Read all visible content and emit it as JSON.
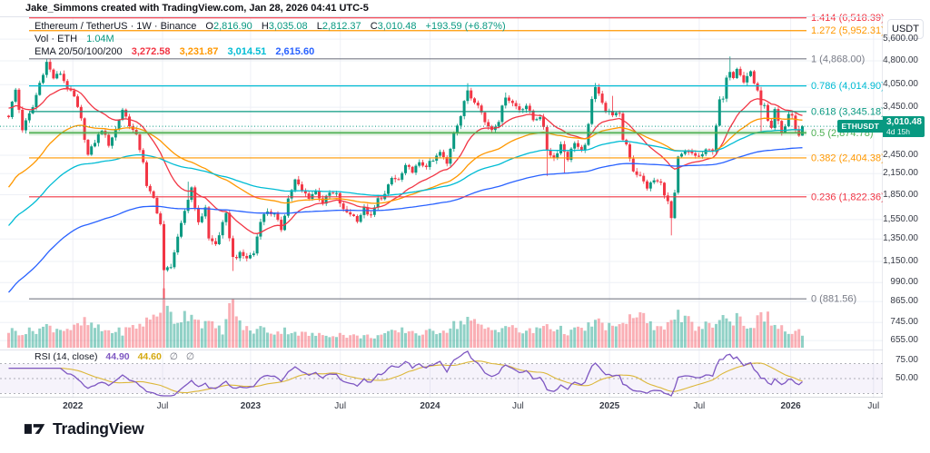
{
  "header": {
    "attribution": "Jake_Simmons created with TradingView.com, Jan 28, 2026 04:41 UTC-5"
  },
  "legend": {
    "symbol_line": {
      "title": "Ethereum / TetherUS · 1W · Binance",
      "o_label": "O",
      "o": "2,816.90",
      "h_label": "H",
      "h": "3,035.08",
      "l_label": "L",
      "l": "2,812.37",
      "c_label": "C",
      "c": "3,010.48",
      "change": "+193.59 (+6.87%)"
    },
    "volume_line": {
      "title": "Vol · ETH",
      "value": "1.04M"
    },
    "ema_line": {
      "title": "EMA 20/50/100/200",
      "values": [
        {
          "text": "3,272.58",
          "color": "#f23645"
        },
        {
          "text": "3,231.87",
          "color": "#ff9800"
        },
        {
          "text": "3,014.51",
          "color": "#00bcd4"
        },
        {
          "text": "2,615.60",
          "color": "#2962ff"
        }
      ]
    }
  },
  "price_scale": {
    "currency": "USDT",
    "labels": [
      "5,600.00",
      "4,800.00",
      "4,050.00",
      "3,450.00",
      "2,450.00",
      "2,150.00",
      "1,850.00",
      "1,550.00",
      "1,350.00",
      "1,150.00",
      "990.00",
      "865.00",
      "745.00",
      "655.00"
    ],
    "hidden_grid_levels": [
      2950
    ],
    "symbol_badge": "ETHUSDT",
    "last_price": "3,010.48",
    "countdown": "4d 15h"
  },
  "rsi_scale": {
    "labels": [
      {
        "label": "75.00",
        "value": 75
      },
      {
        "label": "50.00",
        "value": 50
      }
    ]
  },
  "time_axis": {
    "ticks": [
      {
        "label": "2022",
        "week": 19,
        "major": true
      },
      {
        "label": "Jul",
        "week": 45,
        "major": false
      },
      {
        "label": "2023",
        "week": 70.5,
        "major": true
      },
      {
        "label": "Jul",
        "week": 96.5,
        "major": false
      },
      {
        "label": "2024",
        "week": 122.5,
        "major": true
      },
      {
        "label": "Jul",
        "week": 148,
        "major": false
      },
      {
        "label": "2025",
        "week": 174.5,
        "major": true
      },
      {
        "label": "Jul",
        "week": 200.5,
        "major": false
      },
      {
        "label": "2026",
        "week": 227,
        "major": true
      },
      {
        "label": "Jul",
        "week": 251,
        "major": false
      }
    ]
  },
  "fib_levels": [
    {
      "label": "1.414 (6,518.39)",
      "value": 1.414,
      "price": 6518.39,
      "color": "#f23645",
      "band": false
    },
    {
      "label": "1.272 (5,952.31)",
      "value": 1.272,
      "price": 5952.31,
      "color": "#ff9800",
      "band": false
    },
    {
      "label": "1 (4,868.00)",
      "value": 1,
      "price": 4868.0,
      "color": "#787b86",
      "band": false
    },
    {
      "label": "0.786 (4,014.90)",
      "value": 0.786,
      "price": 4014.9,
      "color": "#00bcd4",
      "band": false
    },
    {
      "label": "0.618 (3,345.18)",
      "value": 0.618,
      "price": 3345.18,
      "color": "#089981",
      "band": false
    },
    {
      "label": "0.5 (2,874.78)",
      "value": 0.5,
      "price": 2874.78,
      "color": "#4caf50",
      "band": true
    },
    {
      "label": "0.382 (2,404.38)",
      "value": 0.382,
      "price": 2404.38,
      "color": "#ff9800",
      "band": false
    },
    {
      "label": "0.236 (1,822.36)",
      "value": 0.236,
      "price": 1822.36,
      "color": "#f23645",
      "band": false
    },
    {
      "label": "0 (881.56)",
      "value": 0,
      "price": 881.56,
      "color": "#787b86",
      "band": false
    }
  ],
  "rsi_legend": {
    "title": "RSI (14, close)",
    "value_main": "44.90",
    "value_main_color": "#7e57c2",
    "value_ma": "44.60",
    "value_ma_color": "#d4a90f",
    "empty1": "∅",
    "empty2": "∅",
    "empty_color": "#787b86"
  },
  "footer": {
    "brand": "TradingView"
  },
  "chart_data": {
    "type": "candlestick",
    "symbol": "ETHUSDT",
    "exchange": "Binance",
    "timeframe": "1W",
    "scale": "log",
    "ylim": [
      620,
      5900
    ],
    "weeks": 231,
    "current_bar": {
      "open": 2816.9,
      "high": 3035.08,
      "low": 2812.37,
      "close": 3010.48,
      "change": 193.59,
      "change_pct": 6.87
    },
    "colors": {
      "up": "#089981",
      "down": "#f23645",
      "grid": "#eef0f6",
      "current_line": "#089981",
      "vol_up": "rgba(8,153,129,0.45)",
      "vol_down": "rgba(242,54,69,0.40)",
      "rsi_line": "#7e57c2",
      "rsi_ma": "#dcb73a",
      "rsi_band_fill": "rgba(126,87,194,0.07)",
      "rsi_band_line": "#9598a1"
    },
    "price_path_anchors": [
      [
        0,
        3250
      ],
      [
        2,
        3900
      ],
      [
        4,
        2950
      ],
      [
        7,
        3450
      ],
      [
        9,
        4100
      ],
      [
        11,
        4750
      ],
      [
        13,
        4250
      ],
      [
        15,
        4400
      ],
      [
        17,
        3950
      ],
      [
        19,
        3700
      ],
      [
        21,
        3150
      ],
      [
        23,
        2450
      ],
      [
        25,
        2700
      ],
      [
        27,
        2950
      ],
      [
        29,
        2650
      ],
      [
        31,
        2950
      ],
      [
        33,
        3400
      ],
      [
        35,
        3050
      ],
      [
        37,
        2800
      ],
      [
        39,
        2350
      ],
      [
        40,
        1950
      ],
      [
        42,
        1800
      ],
      [
        44,
        1500
      ],
      [
        45,
        1070
      ],
      [
        47,
        1120
      ],
      [
        49,
        1350
      ],
      [
        51,
        1650
      ],
      [
        53,
        1950
      ],
      [
        55,
        1500
      ],
      [
        57,
        1700
      ],
      [
        58,
        1350
      ],
      [
        60,
        1300
      ],
      [
        62,
        1500
      ],
      [
        63,
        1600
      ],
      [
        65,
        1180
      ],
      [
        67,
        1210
      ],
      [
        69,
        1180
      ],
      [
        71,
        1220
      ],
      [
        73,
        1550
      ],
      [
        75,
        1650
      ],
      [
        77,
        1600
      ],
      [
        79,
        1450
      ],
      [
        81,
        1800
      ],
      [
        83,
        2050
      ],
      [
        85,
        1900
      ],
      [
        87,
        1820
      ],
      [
        89,
        1900
      ],
      [
        91,
        1750
      ],
      [
        93,
        1870
      ],
      [
        95,
        1850
      ],
      [
        97,
        1650
      ],
      [
        99,
        1620
      ],
      [
        101,
        1550
      ],
      [
        103,
        1670
      ],
      [
        105,
        1580
      ],
      [
        107,
        1790
      ],
      [
        109,
        1850
      ],
      [
        111,
        2080
      ],
      [
        113,
        2050
      ],
      [
        115,
        2250
      ],
      [
        117,
        2200
      ],
      [
        119,
        2300
      ],
      [
        121,
        2280
      ],
      [
        123,
        2350
      ],
      [
        125,
        2500
      ],
      [
        127,
        2300
      ],
      [
        129,
        2900
      ],
      [
        131,
        3250
      ],
      [
        133,
        3900
      ],
      [
        134,
        3700
      ],
      [
        136,
        3550
      ],
      [
        138,
        3100
      ],
      [
        140,
        2950
      ],
      [
        142,
        3150
      ],
      [
        144,
        3750
      ],
      [
        146,
        3550
      ],
      [
        148,
        3400
      ],
      [
        150,
        3500
      ],
      [
        152,
        3150
      ],
      [
        154,
        3250
      ],
      [
        155,
        2950
      ],
      [
        156,
        2550
      ],
      [
        158,
        2400
      ],
      [
        160,
        2650
      ],
      [
        162,
        2400
      ],
      [
        164,
        2700
      ],
      [
        166,
        2500
      ],
      [
        167,
        2600
      ],
      [
        168,
        3100
      ],
      [
        169,
        3600
      ],
      [
        170,
        3950
      ],
      [
        171,
        3850
      ],
      [
        172,
        3600
      ],
      [
        173,
        3350
      ],
      [
        175,
        3300
      ],
      [
        177,
        3250
      ],
      [
        178,
        2750
      ],
      [
        179,
        2650
      ],
      [
        181,
        2200
      ],
      [
        183,
        2100
      ],
      [
        185,
        1950
      ],
      [
        187,
        2050
      ],
      [
        189,
        2000
      ],
      [
        191,
        1750
      ],
      [
        192,
        1560
      ],
      [
        193,
        1850
      ],
      [
        194,
        2400
      ],
      [
        196,
        2500
      ],
      [
        198,
        2480
      ],
      [
        200,
        2420
      ],
      [
        202,
        2520
      ],
      [
        204,
        2550
      ],
      [
        205,
        3050
      ],
      [
        206,
        3600
      ],
      [
        207,
        3650
      ],
      [
        208,
        4200
      ],
      [
        209,
        4500
      ],
      [
        210,
        4300
      ],
      [
        211,
        4600
      ],
      [
        212,
        4400
      ],
      [
        213,
        4150
      ],
      [
        214,
        4300
      ],
      [
        215,
        4450
      ],
      [
        216,
        4100
      ],
      [
        217,
        3900
      ],
      [
        218,
        3450
      ],
      [
        219,
        3550
      ],
      [
        220,
        3100
      ],
      [
        221,
        2950
      ],
      [
        222,
        3350
      ],
      [
        223,
        3100
      ],
      [
        224,
        2850
      ],
      [
        225,
        3000
      ],
      [
        226,
        3300
      ],
      [
        227,
        3250
      ],
      [
        228,
        2950
      ],
      [
        229,
        2816.9
      ],
      [
        230,
        3010.48
      ]
    ],
    "extreme_overrides": {
      "highs": [
        [
          11,
          4868
        ],
        [
          52,
          2030
        ],
        [
          133,
          4092
        ],
        [
          144,
          3830
        ],
        [
          170,
          4100
        ],
        [
          175,
          3740
        ],
        [
          209,
          4950
        ]
      ],
      "lows": [
        [
          45,
          882
        ],
        [
          65,
          1075
        ],
        [
          156,
          2115
        ],
        [
          161,
          2150
        ],
        [
          192,
          1385
        ],
        [
          218,
          2880
        ]
      ]
    },
    "volume_anchors_m": [
      [
        0,
        4.5
      ],
      [
        5,
        4
      ],
      [
        11,
        5.5
      ],
      [
        15,
        5
      ],
      [
        19,
        5
      ],
      [
        22,
        6.5
      ],
      [
        27,
        4.5
      ],
      [
        33,
        4.2
      ],
      [
        38,
        6
      ],
      [
        40,
        6.8
      ],
      [
        43,
        9
      ],
      [
        45,
        13
      ],
      [
        46,
        10
      ],
      [
        48,
        7
      ],
      [
        51,
        8.5
      ],
      [
        53,
        9.5
      ],
      [
        55,
        7
      ],
      [
        58,
        6
      ],
      [
        62,
        4.5
      ],
      [
        65,
        12.5
      ],
      [
        67,
        6
      ],
      [
        70,
        4.2
      ],
      [
        73,
        5
      ],
      [
        77,
        4
      ],
      [
        81,
        4.6
      ],
      [
        85,
        3.6
      ],
      [
        90,
        3.2
      ],
      [
        95,
        3.6
      ],
      [
        100,
        3
      ],
      [
        105,
        2.9
      ],
      [
        110,
        3.6
      ],
      [
        115,
        4.6
      ],
      [
        120,
        3.6
      ],
      [
        123,
        4.2
      ],
      [
        127,
        5
      ],
      [
        131,
        6.6
      ],
      [
        133,
        7.6
      ],
      [
        136,
        5.6
      ],
      [
        140,
        4.6
      ],
      [
        144,
        5.8
      ],
      [
        148,
        4.2
      ],
      [
        152,
        4.2
      ],
      [
        156,
        6.2
      ],
      [
        158,
        5
      ],
      [
        162,
        4.2
      ],
      [
        166,
        4.6
      ],
      [
        170,
        6.6
      ],
      [
        172,
        6
      ],
      [
        174,
        5.6
      ],
      [
        177,
        5
      ],
      [
        179,
        7.6
      ],
      [
        183,
        8.6
      ],
      [
        185,
        6
      ],
      [
        187,
        5.6
      ],
      [
        189,
        6.6
      ],
      [
        191,
        5.6
      ],
      [
        193,
        9
      ],
      [
        195,
        7
      ],
      [
        197,
        6.6
      ],
      [
        200,
        5
      ],
      [
        204,
        6.2
      ],
      [
        207,
        8
      ],
      [
        209,
        6.2
      ],
      [
        211,
        9
      ],
      [
        213,
        6
      ],
      [
        215,
        5.6
      ],
      [
        217,
        7
      ],
      [
        219,
        8.6
      ],
      [
        221,
        7
      ],
      [
        223,
        5
      ],
      [
        225,
        4.6
      ],
      [
        227,
        3.6
      ],
      [
        229,
        4.2
      ],
      [
        230,
        3
      ]
    ],
    "volume_current_m": 1.04,
    "emas": {
      "periods": [
        20,
        50,
        100,
        200
      ],
      "display_values": [
        3272.58,
        3231.87,
        3014.51,
        2615.6
      ],
      "seeds": [
        3450,
        1900,
        1450,
        900
      ],
      "colors": [
        "#f23645",
        "#ff9800",
        "#00bcd4",
        "#2962ff"
      ]
    },
    "rsi": {
      "period": 14,
      "value": 44.9,
      "ma_value": 44.6,
      "bands": [
        70,
        50,
        30
      ]
    }
  }
}
